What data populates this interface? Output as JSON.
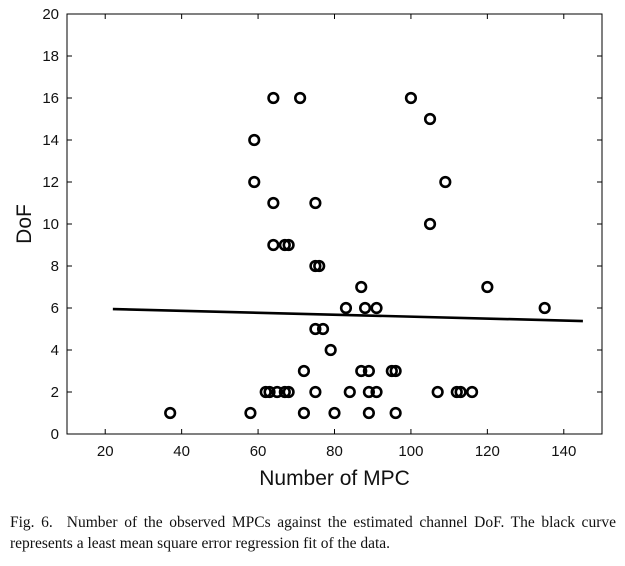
{
  "chart_data": {
    "type": "scatter",
    "xlabel": "Number of MPC",
    "ylabel": "DoF",
    "xlim": [
      10,
      150
    ],
    "ylim": [
      0,
      20
    ],
    "x_ticks": [
      20,
      40,
      60,
      80,
      100,
      120,
      140
    ],
    "y_ticks": [
      0,
      2,
      4,
      6,
      8,
      10,
      12,
      14,
      16,
      18,
      20
    ],
    "grid": false,
    "legend": "none",
    "marker": "open-circle",
    "marker_color": "#000000",
    "series": [
      {
        "points": [
          [
            37,
            1
          ],
          [
            58,
            1
          ],
          [
            72,
            1
          ],
          [
            80,
            1
          ],
          [
            89,
            1
          ],
          [
            96,
            1
          ],
          [
            62,
            2
          ],
          [
            63,
            2
          ],
          [
            65,
            2
          ],
          [
            67,
            2
          ],
          [
            68,
            2
          ],
          [
            75,
            2
          ],
          [
            84,
            2
          ],
          [
            89,
            2
          ],
          [
            91,
            2
          ],
          [
            107,
            2
          ],
          [
            112,
            2
          ],
          [
            113,
            2
          ],
          [
            116,
            2
          ],
          [
            72,
            3
          ],
          [
            87,
            3
          ],
          [
            89,
            3
          ],
          [
            95,
            3
          ],
          [
            96,
            3
          ],
          [
            79,
            4
          ],
          [
            75,
            5
          ],
          [
            77,
            5
          ],
          [
            83,
            6
          ],
          [
            88,
            6
          ],
          [
            91,
            6
          ],
          [
            135,
            6
          ],
          [
            87,
            7
          ],
          [
            120,
            7
          ],
          [
            75,
            8
          ],
          [
            76,
            8
          ],
          [
            64,
            9
          ],
          [
            67,
            9
          ],
          [
            68,
            9
          ],
          [
            105,
            10
          ],
          [
            64,
            11
          ],
          [
            75,
            11
          ],
          [
            59,
            12
          ],
          [
            109,
            12
          ],
          [
            59,
            14
          ],
          [
            105,
            15
          ],
          [
            64,
            16
          ],
          [
            71,
            16
          ],
          [
            100,
            16
          ]
        ]
      }
    ],
    "fit_line": {
      "type": "least-squares",
      "color": "#000000",
      "x": [
        22,
        145
      ],
      "y": [
        5.95,
        5.38
      ]
    }
  },
  "caption": {
    "prefix": "Fig. 6.",
    "text": "Number of the observed MPCs against the estimated channel DoF. The black curve represents a least mean square error regression fit of the data."
  }
}
